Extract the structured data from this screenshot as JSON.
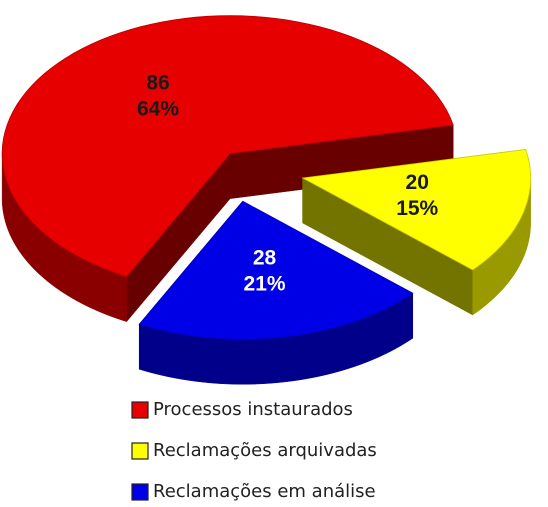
{
  "chart_data": {
    "type": "pie",
    "categories": [
      "Processos instaurados",
      "Reclamações arquivadas",
      "Reclamações em análise"
    ],
    "values": [
      86,
      20,
      28
    ],
    "percent_labels": [
      "64%",
      "15%",
      "21%"
    ],
    "colors": [
      "#e60000",
      "#ffff00",
      "#0000e6"
    ],
    "label_colors": [
      "#1a1a1a",
      "#1a1a1a",
      "#ffffff"
    ],
    "legend": "bottom"
  }
}
